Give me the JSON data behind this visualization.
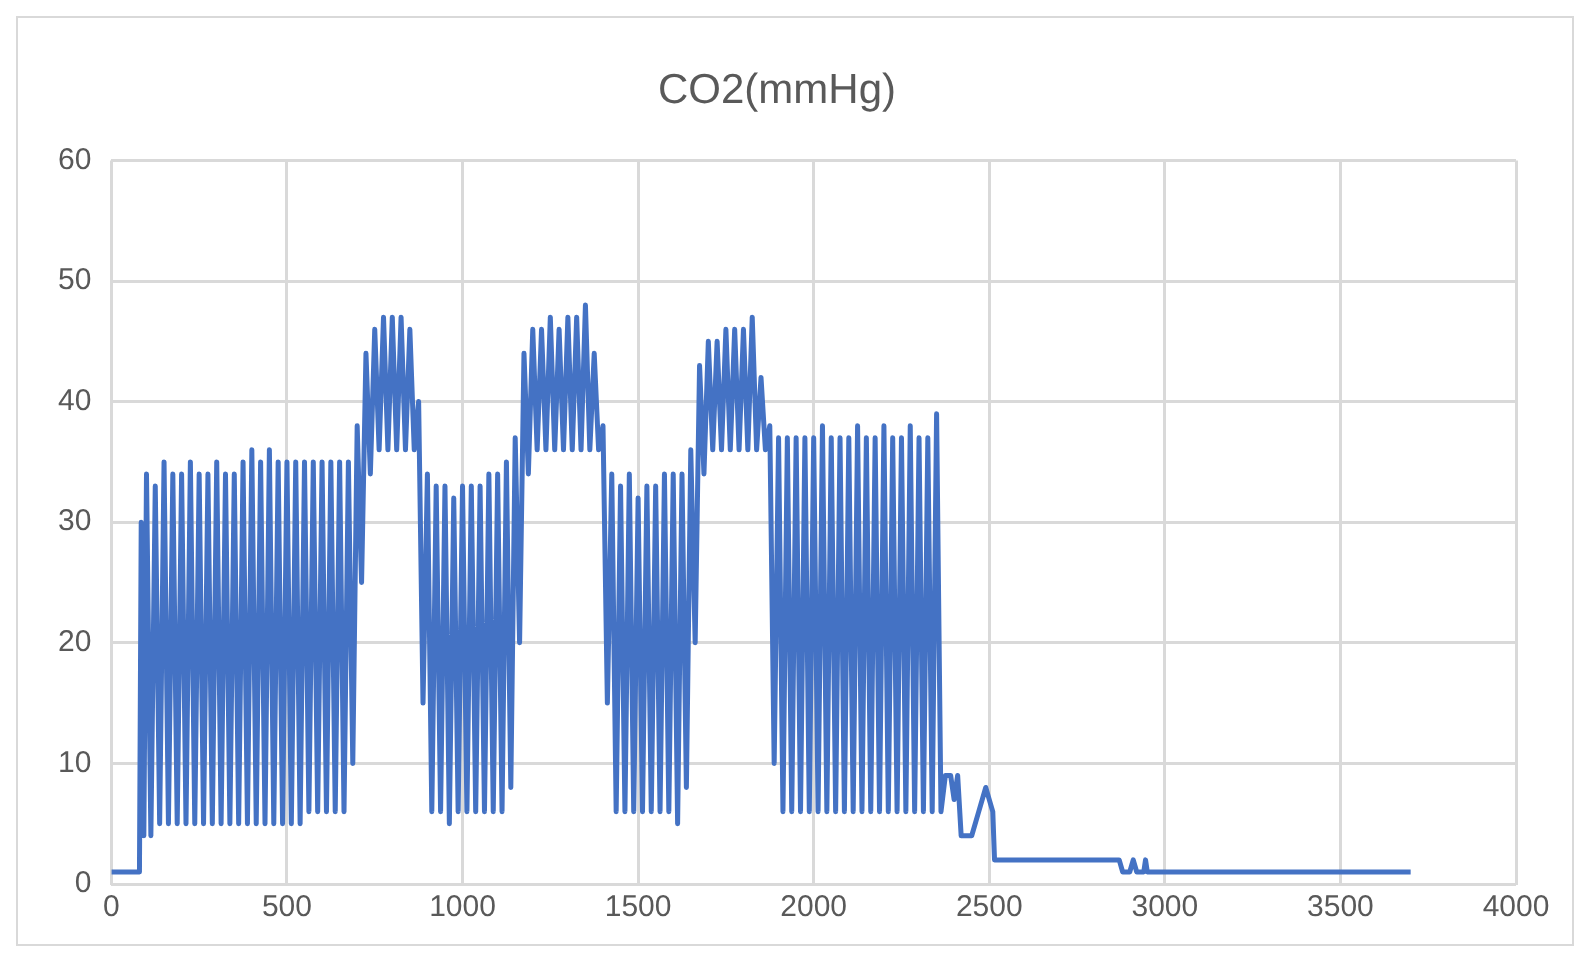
{
  "chart_data": {
    "type": "line",
    "title": "CO2(mmHg)",
    "color": "#4472c4",
    "xlim": [
      0,
      4000
    ],
    "xticks": [
      0,
      500,
      1000,
      1500,
      2000,
      2500,
      3000,
      3500,
      4000
    ],
    "ylim": [
      0,
      60
    ],
    "yticks": [
      0,
      10,
      20,
      30,
      40,
      50,
      60
    ],
    "grid": true,
    "legend": false,
    "marker": "none",
    "line_style": "solid",
    "x": [
      0,
      80,
      85,
      92.5,
      100,
      112.5,
      125,
      137.5,
      150,
      162.5,
      175,
      187.5,
      200,
      212.5,
      225,
      237.5,
      250,
      262.5,
      275,
      287.5,
      300,
      312.5,
      325,
      337.5,
      350,
      362.5,
      375,
      387.5,
      400,
      412.5,
      425,
      437.5,
      450,
      462.5,
      475,
      487.5,
      500,
      512.5,
      525,
      537.5,
      550,
      562.5,
      575,
      587.5,
      600,
      612.5,
      625,
      637.5,
      650,
      662.5,
      675,
      687.5,
      700,
      712.5,
      725,
      737.5,
      750,
      762.5,
      775,
      787.5,
      800,
      812.5,
      825,
      837.5,
      850,
      862.5,
      875,
      887.5,
      900,
      912.5,
      925,
      937.5,
      950,
      962.5,
      975,
      987.5,
      1000,
      1012.5,
      1025,
      1037.5,
      1050,
      1062.5,
      1075,
      1087.5,
      1100,
      1112.5,
      1125,
      1137.5,
      1150,
      1162.5,
      1175,
      1187.5,
      1200,
      1212.5,
      1225,
      1237.5,
      1250,
      1262.5,
      1275,
      1287.5,
      1300,
      1312.5,
      1325,
      1337.5,
      1350,
      1362.5,
      1375,
      1387.5,
      1400,
      1412.5,
      1425,
      1437.5,
      1450,
      1462.5,
      1475,
      1487.5,
      1500,
      1512.5,
      1525,
      1537.5,
      1550,
      1562.5,
      1575,
      1587.5,
      1600,
      1612.5,
      1625,
      1637.5,
      1650,
      1662.5,
      1675,
      1687.5,
      1700,
      1712.5,
      1725,
      1737.5,
      1750,
      1762.5,
      1775,
      1787.5,
      1800,
      1812.5,
      1825,
      1837.5,
      1850,
      1862.5,
      1875,
      1887.5,
      1900,
      1912.5,
      1925,
      1937.5,
      1950,
      1962.5,
      1975,
      1987.5,
      2000,
      2012.5,
      2025,
      2037.5,
      2050,
      2062.5,
      2075,
      2087.5,
      2100,
      2112.5,
      2125,
      2137.5,
      2150,
      2162.5,
      2175,
      2187.5,
      2200,
      2212.5,
      2225,
      2237.5,
      2250,
      2262.5,
      2275,
      2287.5,
      2300,
      2312.5,
      2325,
      2337.5,
      2350,
      2362.5,
      2375,
      2390,
      2400,
      2410,
      2420,
      2450,
      2470,
      2490,
      2500,
      2510,
      2515,
      2870,
      2880,
      2900,
      2910,
      2920,
      2940,
      2945,
      2950,
      3700
    ],
    "values": [
      1,
      1,
      30,
      4,
      34,
      4,
      33,
      5,
      35,
      5,
      34,
      5,
      34,
      5,
      35,
      5,
      34,
      5,
      34,
      5,
      35,
      5,
      34,
      5,
      34,
      5,
      35,
      5,
      36,
      5,
      35,
      5,
      36,
      5,
      35,
      5,
      35,
      5,
      35,
      5,
      35,
      6,
      35,
      6,
      35,
      6,
      35,
      6,
      35,
      6,
      35,
      10,
      38,
      25,
      44,
      34,
      46,
      36,
      47,
      36,
      47,
      36,
      47,
      36,
      46,
      36,
      40,
      15,
      34,
      6,
      33,
      6,
      33,
      5,
      32,
      6,
      33,
      6,
      33,
      6,
      33,
      6,
      34,
      6,
      34,
      6,
      35,
      8,
      37,
      20,
      44,
      34,
      46,
      36,
      46,
      36,
      47,
      36,
      46,
      36,
      47,
      36,
      47,
      36,
      48,
      36,
      44,
      36,
      38,
      15,
      34,
      6,
      33,
      6,
      34,
      6,
      32,
      6,
      33,
      6,
      33,
      6,
      34,
      6,
      34,
      5,
      34,
      8,
      36,
      20,
      43,
      34,
      45,
      36,
      45,
      36,
      46,
      36,
      46,
      36,
      46,
      36,
      47,
      36,
      42,
      36,
      38,
      10,
      37,
      6,
      37,
      6,
      37,
      6,
      37,
      6,
      37,
      6,
      38,
      6,
      37,
      6,
      37,
      6,
      37,
      6,
      38,
      6,
      37,
      6,
      37,
      6,
      38,
      6,
      37,
      6,
      37,
      6,
      38,
      6,
      37,
      6,
      37,
      6,
      39,
      6,
      9,
      9,
      7,
      9,
      4,
      4,
      6,
      8,
      7,
      6,
      2,
      2,
      1,
      1,
      2,
      1,
      1,
      2,
      1,
      1
    ]
  }
}
